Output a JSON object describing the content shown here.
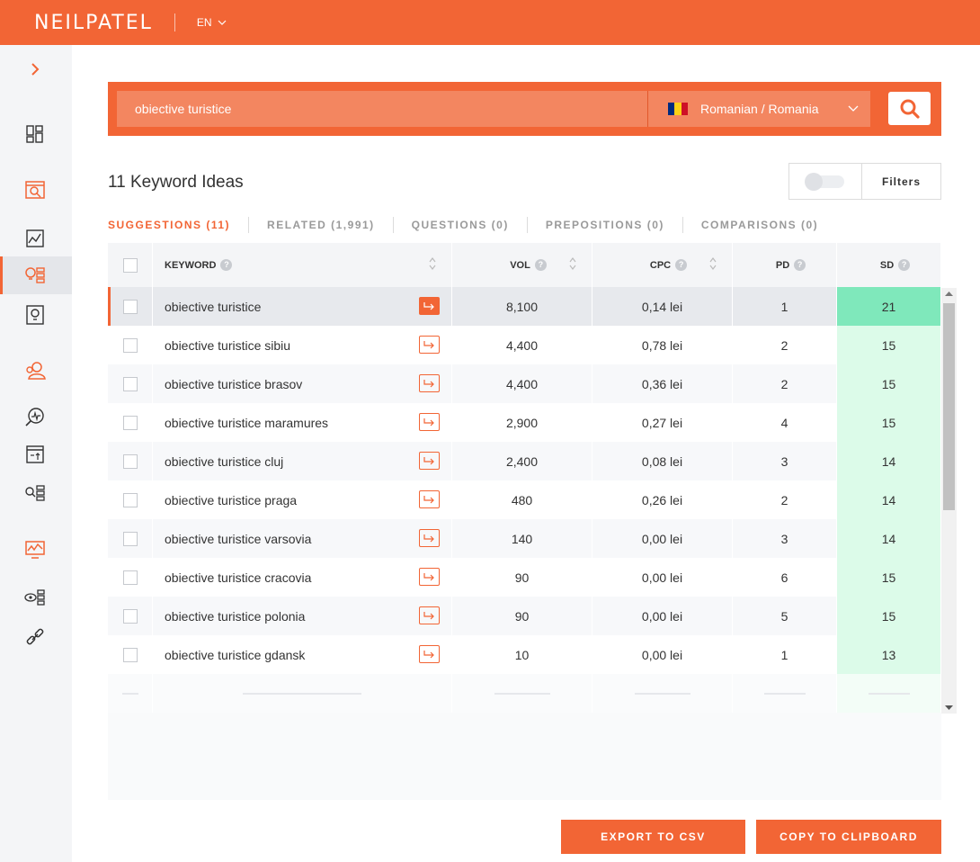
{
  "header": {
    "logo": "NEILPATEL",
    "language": "EN"
  },
  "search": {
    "query": "obiective turistice",
    "location": "Romanian / Romania",
    "flag_colors": [
      "#002b7f",
      "#fcd116",
      "#ce1126"
    ]
  },
  "results": {
    "title": "11 Keyword Ideas",
    "filters_label": "Filters"
  },
  "tabs": [
    {
      "label": "SUGGESTIONS (11)",
      "active": true
    },
    {
      "label": "RELATED (1,991)",
      "active": false
    },
    {
      "label": "QUESTIONS (0)",
      "active": false
    },
    {
      "label": "PREPOSITIONS (0)",
      "active": false
    },
    {
      "label": "COMPARISONS (0)",
      "active": false
    }
  ],
  "table": {
    "columns": {
      "keyword": "KEYWORD",
      "vol": "VOL",
      "cpc": "CPC",
      "pd": "PD",
      "sd": "SD"
    },
    "rows": [
      {
        "keyword": "obiective turistice",
        "vol": "8,100",
        "cpc": "0,14 lei",
        "pd": "1",
        "sd": "21"
      },
      {
        "keyword": "obiective turistice sibiu",
        "vol": "4,400",
        "cpc": "0,78 lei",
        "pd": "2",
        "sd": "15"
      },
      {
        "keyword": "obiective turistice brasov",
        "vol": "4,400",
        "cpc": "0,36 lei",
        "pd": "2",
        "sd": "15"
      },
      {
        "keyword": "obiective turistice maramures",
        "vol": "2,900",
        "cpc": "0,27 lei",
        "pd": "4",
        "sd": "15"
      },
      {
        "keyword": "obiective turistice cluj",
        "vol": "2,400",
        "cpc": "0,08 lei",
        "pd": "3",
        "sd": "14"
      },
      {
        "keyword": "obiective turistice praga",
        "vol": "480",
        "cpc": "0,26 lei",
        "pd": "2",
        "sd": "14"
      },
      {
        "keyword": "obiective turistice varsovia",
        "vol": "140",
        "cpc": "0,00 lei",
        "pd": "3",
        "sd": "14"
      },
      {
        "keyword": "obiective turistice cracovia",
        "vol": "90",
        "cpc": "0,00 lei",
        "pd": "6",
        "sd": "15"
      },
      {
        "keyword": "obiective turistice polonia",
        "vol": "90",
        "cpc": "0,00 lei",
        "pd": "5",
        "sd": "15"
      },
      {
        "keyword": "obiective turistice gdansk",
        "vol": "10",
        "cpc": "0,00 lei",
        "pd": "1",
        "sd": "13"
      }
    ]
  },
  "actions": {
    "export_csv": "EXPORT TO CSV",
    "copy_clipboard": "COPY TO CLIPBOARD"
  },
  "colors": {
    "brand": "#f26535",
    "sd_light": "#dcfbe9",
    "sd_dark": "#7fe8bb"
  }
}
